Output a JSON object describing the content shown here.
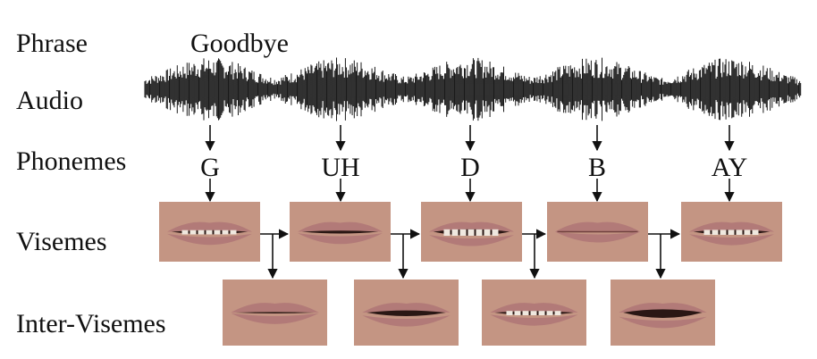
{
  "rows": {
    "phrase_label": "Phrase",
    "audio_label": "Audio",
    "phonemes_label": "Phonemes",
    "visemes_label": "Visemes",
    "intervisemes_label": "Inter-Visemes"
  },
  "phrase": "Goodbye",
  "phonemes": [
    "G",
    "UH",
    "D",
    "B",
    "AY"
  ],
  "viseme_images": [
    {
      "phoneme": "G",
      "mouth": "slightly-open-teeth"
    },
    {
      "phoneme": "UH",
      "mouth": "slightly-open"
    },
    {
      "phoneme": "D",
      "mouth": "open-teeth"
    },
    {
      "phoneme": "B",
      "mouth": "closed"
    },
    {
      "phoneme": "AY",
      "mouth": "wide-teeth"
    }
  ],
  "intervisemes": [
    {
      "mouth": "nearly-closed"
    },
    {
      "mouth": "open-dark"
    },
    {
      "mouth": "slightly-open-teeth"
    },
    {
      "mouth": "wide-open-dark"
    }
  ],
  "colors": {
    "text": "#111111",
    "waveform": "#1a1a1a",
    "arrow": "#111111",
    "skin": "#c49583",
    "lips": "#b27a78",
    "teeth": "#efe8df",
    "mouth_dark": "#2a1714"
  }
}
